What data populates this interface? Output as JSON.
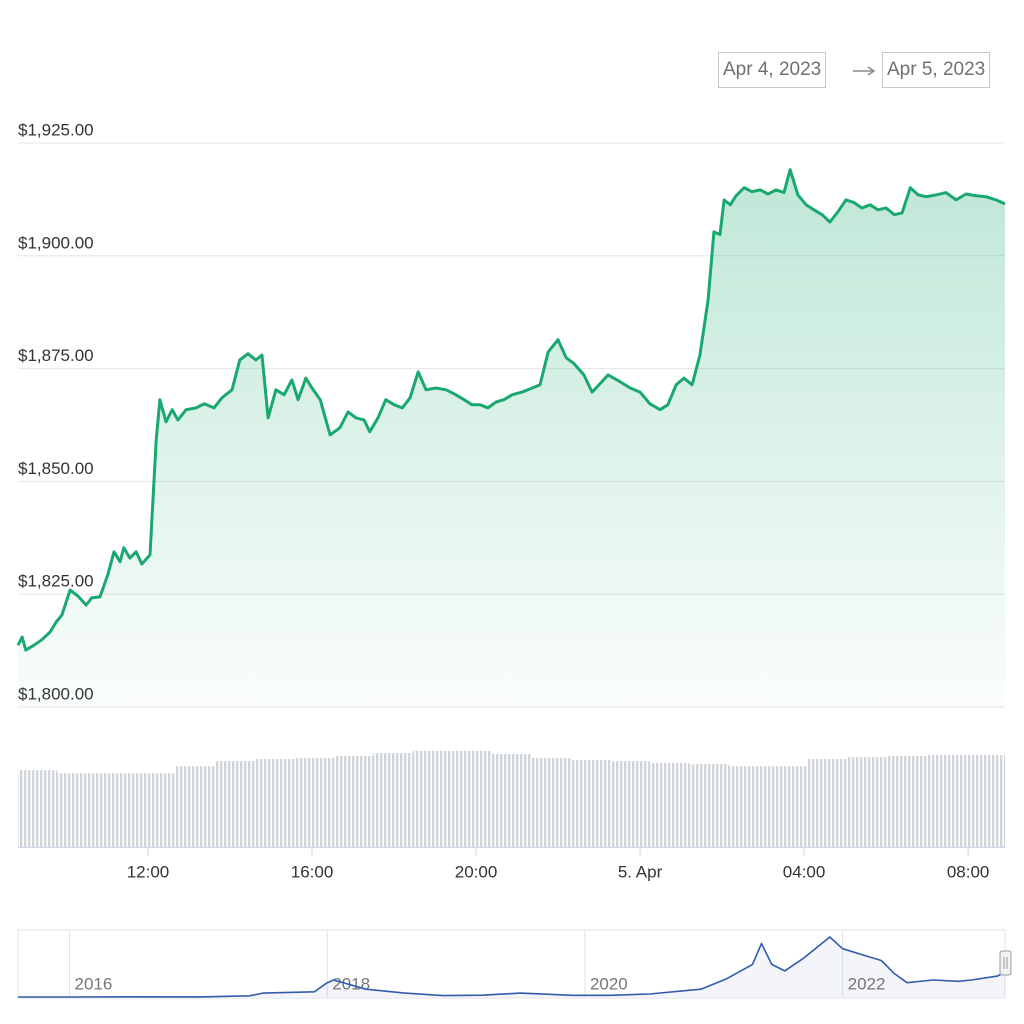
{
  "range": {
    "from": "Apr 4, 2023",
    "to": "Apr 5, 2023"
  },
  "chart_data": [
    {
      "type": "line",
      "color": "#19a96e",
      "area": true,
      "grid": true,
      "xlim": [
        8.83,
        32.9
      ],
      "xticks": [
        {
          "value": 12,
          "label": "12:00"
        },
        {
          "value": 16,
          "label": "16:00"
        },
        {
          "value": 20,
          "label": "20:00"
        },
        {
          "value": 24,
          "label": "5. Apr"
        },
        {
          "value": 28,
          "label": "04:00"
        },
        {
          "value": 32,
          "label": "08:00"
        }
      ],
      "ylim": [
        1800,
        1925
      ],
      "yticks": [
        {
          "value": 1800,
          "label": "$1,800.00"
        },
        {
          "value": 1825,
          "label": "$1,825.00"
        },
        {
          "value": 1850,
          "label": "$1,850.00"
        },
        {
          "value": 1875,
          "label": "$1,875.00"
        },
        {
          "value": 1900,
          "label": "$1,900.00"
        },
        {
          "value": 1925,
          "label": "$1,925.00"
        }
      ],
      "x": [
        8.83,
        8.93,
        9.02,
        9.22,
        9.41,
        9.61,
        9.76,
        9.9,
        10.1,
        10.29,
        10.49,
        10.63,
        10.83,
        11.02,
        11.17,
        11.32,
        11.41,
        11.56,
        11.71,
        11.85,
        12.05,
        12.2,
        12.29,
        12.44,
        12.59,
        12.73,
        12.93,
        13.17,
        13.37,
        13.61,
        13.8,
        14.05,
        14.24,
        14.44,
        14.63,
        14.78,
        14.93,
        15.12,
        15.32,
        15.51,
        15.66,
        15.85,
        16.0,
        16.2,
        16.44,
        16.68,
        16.88,
        17.07,
        17.27,
        17.41,
        17.61,
        17.8,
        18.0,
        18.2,
        18.39,
        18.59,
        18.78,
        19.02,
        19.27,
        19.51,
        19.71,
        19.9,
        20.1,
        20.29,
        20.49,
        20.68,
        20.88,
        21.12,
        21.37,
        21.56,
        21.76,
        22.0,
        22.2,
        22.39,
        22.63,
        22.83,
        23.02,
        23.22,
        23.51,
        23.76,
        24.0,
        24.24,
        24.49,
        24.68,
        24.88,
        25.07,
        25.27,
        25.46,
        25.66,
        25.8,
        25.95,
        26.05,
        26.2,
        26.34,
        26.54,
        26.73,
        26.93,
        27.12,
        27.32,
        27.51,
        27.66,
        27.85,
        28.05,
        28.24,
        28.44,
        28.63,
        28.83,
        29.02,
        29.22,
        29.41,
        29.61,
        29.8,
        30.0,
        30.2,
        30.39,
        30.59,
        30.78,
        30.98,
        31.22,
        31.46,
        31.71,
        31.95,
        32.2,
        32.44,
        32.68,
        32.9
      ],
      "values": [
        1813.7,
        1815.5,
        1812.6,
        1813.7,
        1814.9,
        1816.6,
        1818.8,
        1820.4,
        1825.9,
        1824.6,
        1822.6,
        1824.2,
        1824.4,
        1829.3,
        1834.4,
        1832.2,
        1835.3,
        1833.0,
        1834.4,
        1831.7,
        1833.7,
        1859.2,
        1868.1,
        1863.2,
        1865.9,
        1863.6,
        1865.9,
        1866.3,
        1867.2,
        1866.3,
        1868.5,
        1870.3,
        1876.9,
        1878.3,
        1876.9,
        1878.0,
        1864.1,
        1870.3,
        1869.2,
        1872.5,
        1868.1,
        1872.9,
        1870.7,
        1868.1,
        1860.3,
        1861.9,
        1865.4,
        1864.1,
        1863.6,
        1861.0,
        1864.1,
        1868.1,
        1867.0,
        1866.3,
        1868.5,
        1874.3,
        1870.3,
        1870.7,
        1870.3,
        1869.2,
        1868.1,
        1867.0,
        1867.0,
        1866.3,
        1867.6,
        1868.1,
        1869.2,
        1869.8,
        1870.7,
        1871.4,
        1878.7,
        1881.4,
        1877.4,
        1876.1,
        1873.6,
        1869.8,
        1871.6,
        1873.6,
        1872.1,
        1870.7,
        1869.8,
        1867.2,
        1865.9,
        1867.0,
        1871.4,
        1872.9,
        1871.4,
        1878.0,
        1890.2,
        1905.3,
        1904.7,
        1912.4,
        1911.3,
        1913.3,
        1915.1,
        1914.2,
        1914.6,
        1913.7,
        1914.6,
        1914.0,
        1919.1,
        1913.5,
        1911.3,
        1910.2,
        1909.1,
        1907.5,
        1909.8,
        1912.4,
        1911.8,
        1910.6,
        1911.3,
        1910.2,
        1910.6,
        1909.1,
        1909.5,
        1915.1,
        1913.5,
        1913.1,
        1913.5,
        1914.0,
        1912.4,
        1913.7,
        1913.3,
        1913.1,
        1912.4,
        1911.5
      ]
    },
    {
      "type": "bar",
      "color": "#d0d5da",
      "values": [
        76,
        73,
        73,
        73,
        80,
        85,
        87,
        88,
        90,
        93,
        95,
        95,
        92,
        88,
        86,
        85,
        83,
        82,
        80,
        80,
        87,
        89,
        90,
        91,
        91
      ]
    },
    {
      "type": "line",
      "color": "#335cad",
      "grid": true,
      "xlim": [
        2015.6,
        2023.26
      ],
      "xticks": [
        2016,
        2018,
        2020,
        2022
      ],
      "x": [
        2015.6,
        2016.0,
        2016.5,
        2017.0,
        2017.4,
        2017.5,
        2017.9,
        2018.0,
        2018.05,
        2018.3,
        2018.6,
        2018.9,
        2019.2,
        2019.5,
        2019.9,
        2020.2,
        2020.5,
        2020.9,
        2021.1,
        2021.3,
        2021.37,
        2021.45,
        2021.55,
        2021.7,
        2021.9,
        2022.0,
        2022.2,
        2022.3,
        2022.4,
        2022.5,
        2022.7,
        2022.9,
        2023.0,
        2023.2,
        2023.26
      ],
      "values": [
        1,
        1,
        12,
        8,
        90,
        300,
        400,
        1100,
        1300,
        600,
        300,
        110,
        140,
        300,
        130,
        130,
        230,
        600,
        1400,
        2500,
        4100,
        2500,
        2000,
        3000,
        4600,
        3700,
        3100,
        2800,
        1800,
        1100,
        1300,
        1200,
        1300,
        1600,
        1900
      ]
    }
  ]
}
